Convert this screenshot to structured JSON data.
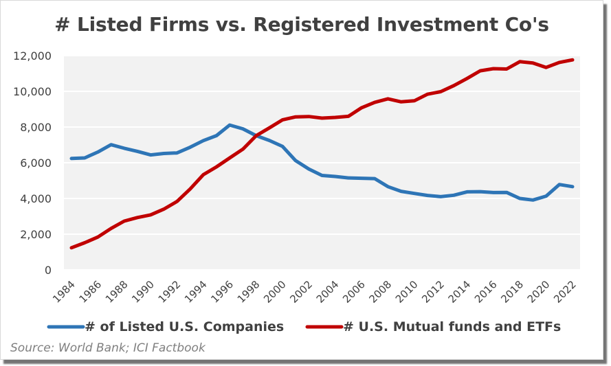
{
  "chart_data": {
    "type": "line",
    "title": "# Listed Firms vs. Registered Investment Co's",
    "xlabel": "",
    "ylabel": "",
    "ylim": [
      0,
      12000
    ],
    "yticks": [
      0,
      2000,
      4000,
      6000,
      8000,
      10000,
      12000
    ],
    "ytick_labels": [
      "0",
      "2,000",
      "4,000",
      "6,000",
      "8,000",
      "10,000",
      "12,000"
    ],
    "xlim": [
      1984,
      2022
    ],
    "xticks": [
      1984,
      1986,
      1988,
      1990,
      1992,
      1994,
      1996,
      1998,
      2000,
      2002,
      2004,
      2006,
      2008,
      2010,
      2012,
      2014,
      2016,
      2018,
      2020,
      2022
    ],
    "xtick_labels": [
      "1984",
      "1986",
      "1988",
      "1990",
      "1992",
      "1994",
      "1996",
      "1998",
      "2000",
      "2002",
      "2004",
      "2006",
      "2008",
      "2010",
      "2012",
      "2014",
      "2016",
      "2018",
      "2020",
      "2022"
    ],
    "grid": true,
    "legend_position": "bottom",
    "x": [
      1984,
      1985,
      1986,
      1987,
      1988,
      1989,
      1990,
      1991,
      1992,
      1993,
      1994,
      1995,
      1996,
      1997,
      1998,
      1999,
      2000,
      2001,
      2002,
      2003,
      2004,
      2005,
      2006,
      2007,
      2008,
      2009,
      2010,
      2011,
      2012,
      2013,
      2014,
      2015,
      2016,
      2017,
      2018,
      2019,
      2020,
      2021,
      2022
    ],
    "series": [
      {
        "name": "# of Listed U.S. Companies",
        "color": "#2E75B6",
        "values": [
          6240,
          6270,
          6600,
          7010,
          6810,
          6640,
          6440,
          6520,
          6550,
          6870,
          7240,
          7520,
          8110,
          7900,
          7520,
          7250,
          6920,
          6120,
          5650,
          5290,
          5230,
          5150,
          5130,
          5110,
          4660,
          4400,
          4280,
          4170,
          4100,
          4180,
          4370,
          4380,
          4330,
          4340,
          4000,
          3910,
          4130,
          4780,
          4660
        ]
      },
      {
        "name": "# U.S. Mutual funds and ETFs",
        "color": "#C00000",
        "values": [
          1240,
          1520,
          1840,
          2320,
          2730,
          2930,
          3080,
          3400,
          3830,
          4530,
          5330,
          5770,
          6270,
          6760,
          7510,
          7950,
          8400,
          8570,
          8590,
          8500,
          8540,
          8600,
          9080,
          9380,
          9580,
          9410,
          9470,
          9840,
          9980,
          10320,
          10720,
          11150,
          11270,
          11250,
          11660,
          11590,
          11340,
          11620,
          11760
        ]
      }
    ],
    "source": "Source: World Bank; ICI Factbook"
  }
}
